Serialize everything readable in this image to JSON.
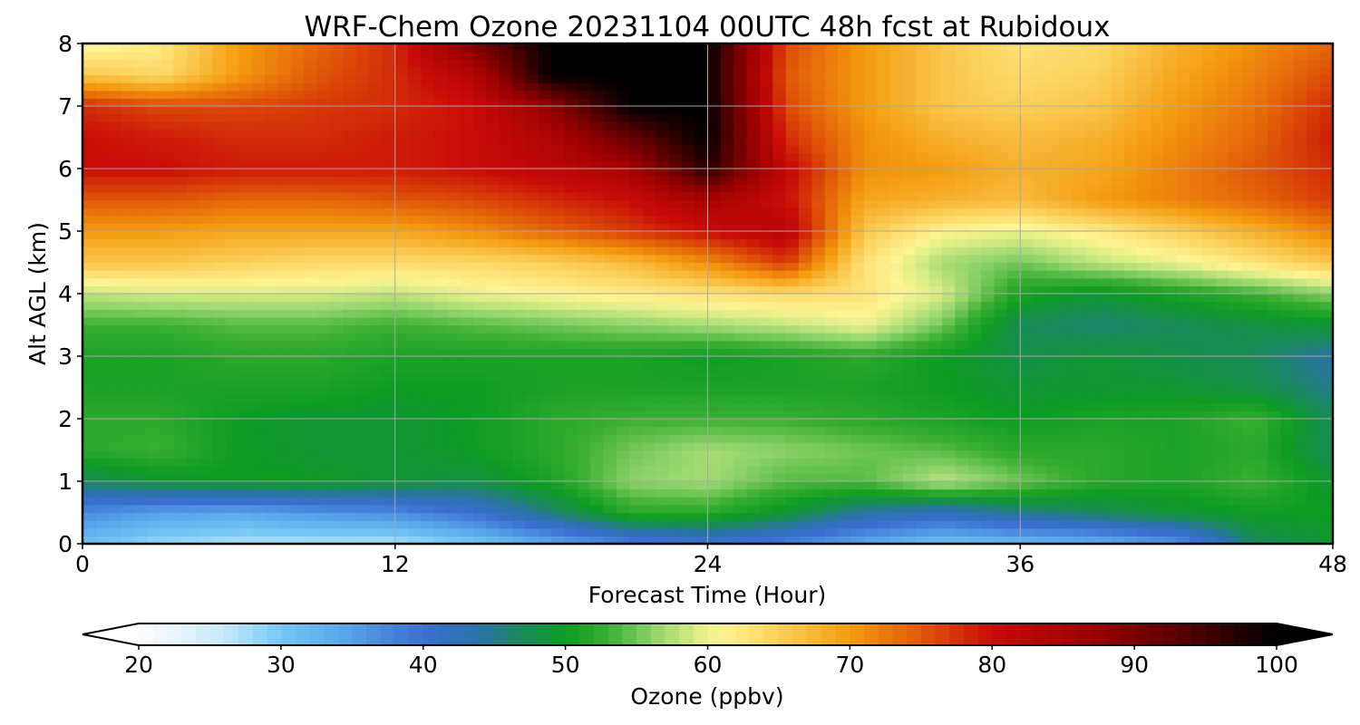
{
  "chart_data": {
    "type": "heatmap",
    "title": "WRF-Chem Ozone  20231104 00UTC 48h fcst at Rubidoux",
    "xlabel": "Forecast Time (Hour)",
    "ylabel": "Alt AGL (km)",
    "xlim": [
      0,
      48
    ],
    "ylim": [
      0,
      8
    ],
    "xticks": [
      0,
      12,
      24,
      36,
      48
    ],
    "yticks": [
      0,
      1,
      2,
      3,
      4,
      5,
      6,
      7,
      8
    ],
    "grid": true,
    "colorbar": {
      "label": "Ozone  (ppbv)",
      "min": 20,
      "max": 100,
      "ticks": [
        20,
        30,
        40,
        50,
        60,
        70,
        80,
        90,
        100
      ],
      "extend": "both",
      "placement": "bottom"
    },
    "x": [
      0,
      3,
      6,
      9,
      12,
      15,
      18,
      21,
      24,
      27,
      30,
      33,
      36,
      39,
      42,
      45,
      48
    ],
    "y": [
      0,
      0.5,
      1,
      1.5,
      2,
      2.5,
      3,
      3.5,
      4,
      4.5,
      5,
      5.5,
      6,
      6.5,
      7,
      7.5,
      8
    ],
    "z": [
      [
        31,
        28,
        27,
        27,
        27,
        30,
        34,
        38,
        40,
        38,
        34,
        31,
        32,
        33,
        36,
        47,
        49
      ],
      [
        37,
        35,
        34,
        36,
        37,
        40,
        46,
        52,
        52,
        49,
        44,
        42,
        45,
        47,
        49,
        50,
        50
      ],
      [
        47,
        49,
        50,
        50,
        49,
        48,
        51,
        56,
        57,
        54,
        54,
        58,
        55,
        52,
        51,
        53,
        49
      ],
      [
        52,
        53,
        50,
        49,
        49,
        50,
        52,
        55,
        57,
        56,
        55,
        54,
        52,
        52,
        51,
        52,
        47
      ],
      [
        52,
        52,
        50,
        49,
        49,
        50,
        52,
        53,
        53,
        53,
        52,
        51,
        50,
        51,
        51,
        53,
        47
      ],
      [
        51,
        51,
        51,
        51,
        50,
        50,
        51,
        51,
        51,
        51,
        51,
        50,
        49,
        49,
        49,
        48,
        45
      ],
      [
        51,
        51,
        52,
        52,
        51,
        51,
        51,
        51,
        50,
        51,
        52,
        50,
        48,
        49,
        48,
        47,
        44
      ],
      [
        53,
        53,
        54,
        54,
        53,
        54,
        55,
        56,
        57,
        58,
        60,
        55,
        47,
        46,
        47,
        48,
        49
      ],
      [
        58,
        59,
        59,
        59,
        58,
        60,
        61,
        62,
        63,
        64,
        63,
        59,
        51,
        49,
        51,
        53,
        56
      ],
      [
        66,
        66,
        65,
        64,
        64,
        64,
        65,
        67,
        71,
        77,
        63,
        57,
        55,
        58,
        60,
        63,
        66
      ],
      [
        70,
        70,
        69,
        69,
        69,
        71,
        74,
        77,
        80,
        83,
        66,
        61,
        60,
        62,
        65,
        68,
        72
      ],
      [
        75,
        75,
        74,
        74,
        75,
        76,
        78,
        80,
        85,
        80,
        69,
        68,
        67,
        70,
        72,
        74,
        77
      ],
      [
        80,
        80,
        79,
        79,
        79,
        80,
        82,
        85,
        97,
        81,
        71,
        70,
        68,
        69,
        72,
        75,
        78
      ],
      [
        80,
        79,
        78,
        78,
        79,
        80,
        84,
        92,
        100,
        78,
        71,
        68,
        67,
        68,
        71,
        74,
        79
      ],
      [
        78,
        76,
        76,
        77,
        78,
        80,
        88,
        100,
        100,
        76,
        70,
        66,
        65,
        66,
        70,
        73,
        78
      ],
      [
        66,
        64,
        70,
        75,
        78,
        83,
        100,
        100,
        100,
        75,
        70,
        66,
        64,
        65,
        69,
        72,
        76
      ],
      [
        60,
        62,
        70,
        74,
        78,
        90,
        100,
        100,
        100,
        76,
        70,
        66,
        63,
        64,
        68,
        71,
        74
      ]
    ]
  },
  "colormap": {
    "stops": [
      [
        20,
        "#ffffff"
      ],
      [
        26,
        "#c8e8fb"
      ],
      [
        30,
        "#74c8f4"
      ],
      [
        34,
        "#5aaaec"
      ],
      [
        40,
        "#3c6ed2"
      ],
      [
        44,
        "#2a72a8"
      ],
      [
        47,
        "#1a8a5a"
      ],
      [
        50,
        "#0c9c22"
      ],
      [
        53,
        "#3aae32"
      ],
      [
        56,
        "#8cd26a"
      ],
      [
        59,
        "#d8ec84"
      ],
      [
        61,
        "#fff494"
      ],
      [
        65,
        "#fbd05a"
      ],
      [
        70,
        "#f49c10"
      ],
      [
        75,
        "#e05808"
      ],
      [
        80,
        "#c80c08"
      ],
      [
        87,
        "#9a0000"
      ],
      [
        94,
        "#500000"
      ],
      [
        100,
        "#000000"
      ]
    ]
  }
}
